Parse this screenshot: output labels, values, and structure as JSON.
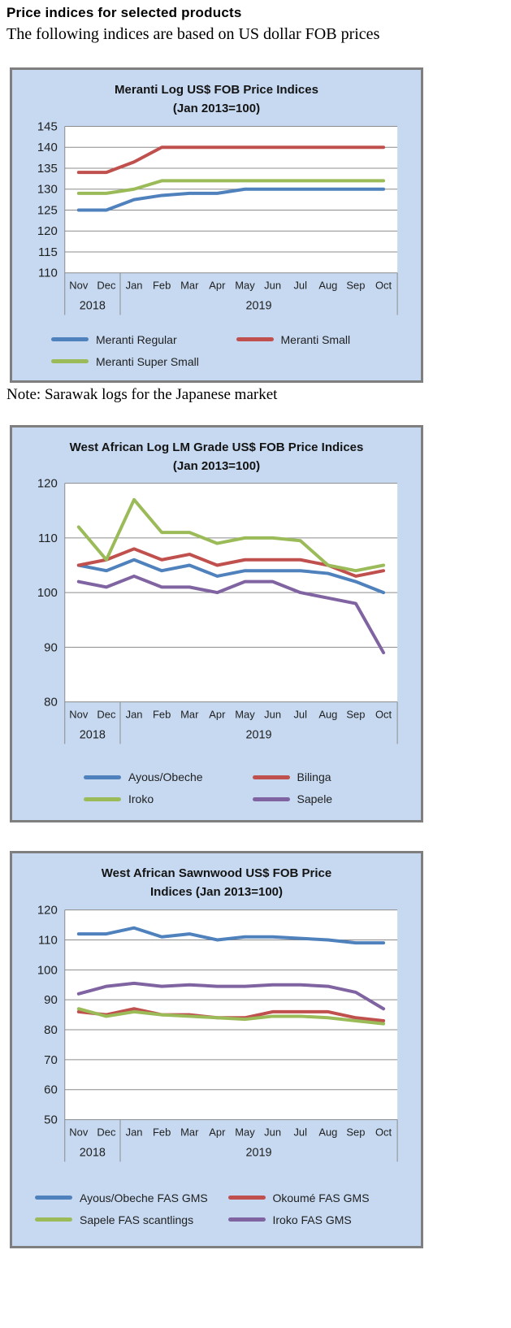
{
  "page": {
    "title": "Price indices for selected products",
    "subtitle": "The following indices are based on US dollar FOB prices",
    "note": "Note: Sarawak logs for the Japanese market"
  },
  "colors": {
    "panel_bg": "#C6D9F1",
    "panel_border": "#7F7F7F",
    "grid": "#8C8C8C",
    "axis_text": "#1f1f1f",
    "series_blue": "#4F81BD",
    "series_red": "#C0504D",
    "series_green": "#9BBB59",
    "series_purple": "#8064A2"
  },
  "chart_data": [
    {
      "type": "line",
      "title_lines": [
        "Meranti Log US$ FOB Price Indices",
        "(Jan 2013=100)"
      ],
      "categories": [
        "Nov",
        "Dec",
        "Jan",
        "Feb",
        "Mar",
        "Apr",
        "May",
        "Jun",
        "Jul",
        "Aug",
        "Sep",
        "Oct"
      ],
      "year_groups": [
        {
          "label": "2018",
          "span": 2
        },
        {
          "label": "2019",
          "span": 10
        }
      ],
      "ylim": [
        110,
        145
      ],
      "y_ticks": [
        145,
        140,
        135,
        130,
        125,
        120,
        115,
        110
      ],
      "grid": true,
      "legend_position": "bottom",
      "series": [
        {
          "name": "Meranti Regular",
          "color": "#4F81BD",
          "values": [
            125,
            125,
            127.5,
            128.5,
            129,
            129,
            130,
            130,
            130,
            130,
            130,
            130
          ]
        },
        {
          "name": "Meranti Small",
          "color": "#C0504D",
          "values": [
            134,
            134,
            136.5,
            140,
            140,
            140,
            140,
            140,
            140,
            140,
            140,
            140
          ]
        },
        {
          "name": "Meranti Super Small",
          "color": "#9BBB59",
          "values": [
            129,
            129,
            130,
            132,
            132,
            132,
            132,
            132,
            132,
            132,
            132,
            132
          ]
        }
      ]
    },
    {
      "type": "line",
      "title_lines": [
        "West African Log LM Grade US$ FOB Price Indices",
        "(Jan 2013=100)"
      ],
      "categories": [
        "Nov",
        "Dec",
        "Jan",
        "Feb",
        "Mar",
        "Apr",
        "May",
        "Jun",
        "Jul",
        "Aug",
        "Sep",
        "Oct"
      ],
      "year_groups": [
        {
          "label": "2018",
          "span": 2
        },
        {
          "label": "2019",
          "span": 10
        }
      ],
      "ylim": [
        80,
        120
      ],
      "y_ticks": [
        120,
        110,
        100,
        90,
        80
      ],
      "grid": true,
      "legend_position": "bottom",
      "series": [
        {
          "name": "Ayous/Obeche",
          "color": "#4F81BD",
          "values": [
            105,
            104,
            106,
            104,
            105,
            103,
            104,
            104,
            104,
            103.5,
            102,
            100
          ]
        },
        {
          "name": "Bilinga",
          "color": "#C0504D",
          "values": [
            105,
            106,
            108,
            106,
            107,
            105,
            106,
            106,
            106,
            105,
            103,
            104
          ]
        },
        {
          "name": "Iroko",
          "color": "#9BBB59",
          "values": [
            112,
            106,
            117,
            111,
            111,
            109,
            110,
            110,
            109.5,
            105,
            104,
            105
          ]
        },
        {
          "name": "Sapele",
          "color": "#8064A2",
          "values": [
            102,
            101,
            103,
            101,
            101,
            100,
            102,
            102,
            100,
            99,
            98,
            89
          ]
        }
      ]
    },
    {
      "type": "line",
      "title_lines": [
        "West African Sawnwood US$ FOB Price",
        "Indices (Jan 2013=100)"
      ],
      "categories": [
        "Nov",
        "Dec",
        "Jan",
        "Feb",
        "Mar",
        "Apr",
        "May",
        "Jun",
        "Jul",
        "Aug",
        "Sep",
        "Oct"
      ],
      "year_groups": [
        {
          "label": "2018",
          "span": 2
        },
        {
          "label": "2019",
          "span": 10
        }
      ],
      "ylim": [
        50,
        120
      ],
      "y_ticks": [
        120,
        110,
        100,
        90,
        80,
        70,
        60,
        50
      ],
      "grid": true,
      "legend_position": "bottom",
      "series": [
        {
          "name": "Ayous/Obeche FAS GMS",
          "color": "#4F81BD",
          "values": [
            112,
            112,
            114,
            111,
            112,
            110,
            111,
            111,
            110.5,
            110,
            109,
            109
          ]
        },
        {
          "name": "Okoumé FAS GMS",
          "color": "#C0504D",
          "values": [
            86,
            85,
            87,
            85,
            85,
            84,
            84,
            86,
            86,
            86,
            84,
            83
          ]
        },
        {
          "name": "Sapele FAS scantlings",
          "color": "#9BBB59",
          "values": [
            87,
            84.5,
            86,
            85,
            84.5,
            84,
            83.5,
            84.5,
            84.5,
            84,
            83,
            82
          ]
        },
        {
          "name": "Iroko FAS GMS",
          "color": "#8064A2",
          "values": [
            92,
            94.5,
            95.5,
            94.5,
            95,
            94.5,
            94.5,
            95,
            95,
            94.5,
            92.5,
            87
          ]
        }
      ]
    }
  ]
}
